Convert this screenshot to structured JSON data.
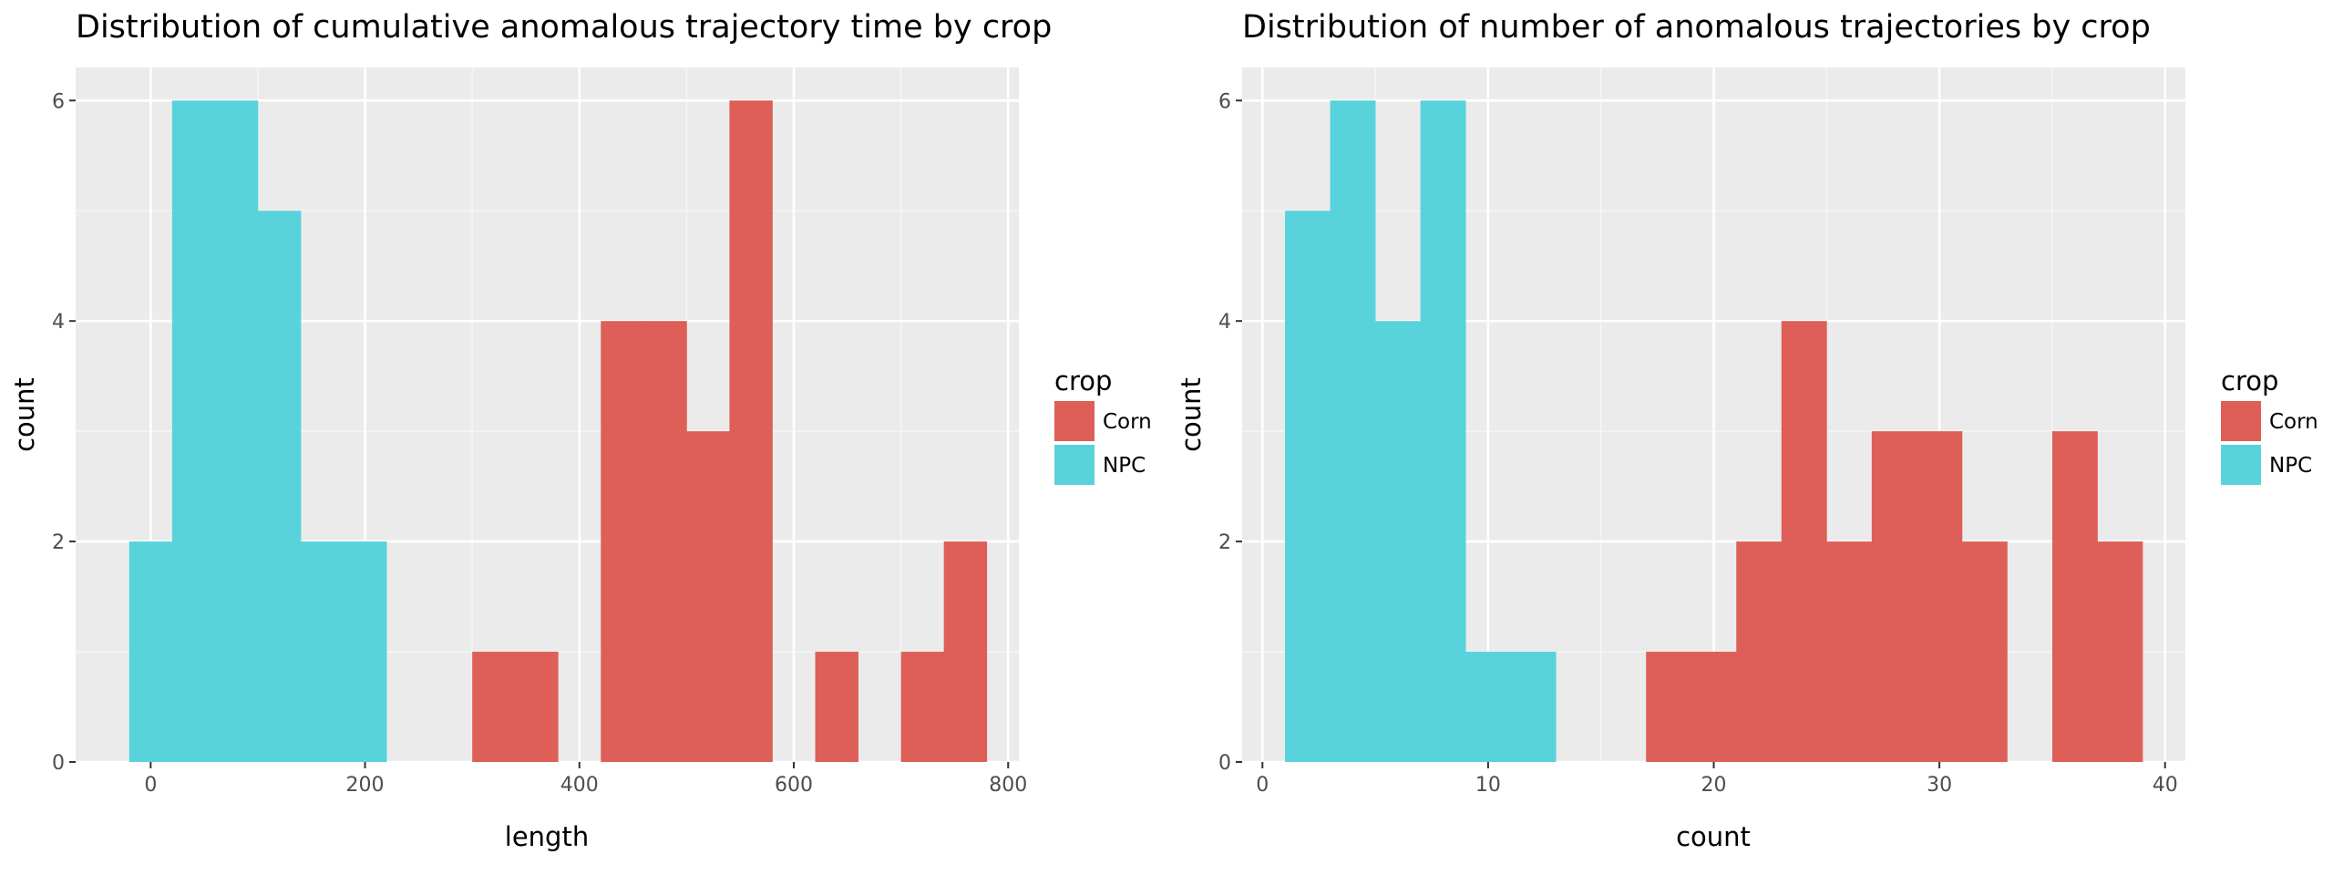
{
  "colors": {
    "Corn": "#dd5f58",
    "NPC": "#58d3db",
    "panel": "#ebebeb",
    "grid_major": "#ffffff",
    "grid_minor": "#f7f7f7",
    "tick": "#333333"
  },
  "chart_data": [
    {
      "type": "bar",
      "title": "Distribution of cumulative anomalous trajectory time by crop",
      "xlabel": "length",
      "ylabel": "count",
      "xlim": [
        -70,
        810
      ],
      "ylim": [
        0,
        6.3
      ],
      "x_ticks": [
        0,
        200,
        400,
        600,
        800
      ],
      "x_tick_labels": [
        "0",
        "200",
        "400",
        "600",
        "800"
      ],
      "y_ticks": [
        0,
        2,
        4,
        6
      ],
      "y_tick_labels": [
        "0",
        "2",
        "4",
        "6"
      ],
      "grid": true,
      "legend": {
        "title": "crop",
        "position": "right",
        "entries": [
          "Corn",
          "NPC"
        ]
      },
      "bin_width": 40,
      "series": [
        {
          "name": "NPC",
          "bins": [
            {
              "x0": -20,
              "x1": 20,
              "count": 2
            },
            {
              "x0": 20,
              "x1": 60,
              "count": 6
            },
            {
              "x0": 60,
              "x1": 100,
              "count": 6
            },
            {
              "x0": 100,
              "x1": 140,
              "count": 5
            },
            {
              "x0": 140,
              "x1": 180,
              "count": 2
            },
            {
              "x0": 180,
              "x1": 220,
              "count": 2
            }
          ]
        },
        {
          "name": "Corn",
          "bins": [
            {
              "x0": 300,
              "x1": 340,
              "count": 1
            },
            {
              "x0": 340,
              "x1": 380,
              "count": 1
            },
            {
              "x0": 420,
              "x1": 460,
              "count": 4
            },
            {
              "x0": 460,
              "x1": 500,
              "count": 4
            },
            {
              "x0": 500,
              "x1": 540,
              "count": 3
            },
            {
              "x0": 540,
              "x1": 580,
              "count": 6
            },
            {
              "x0": 620,
              "x1": 660,
              "count": 1
            },
            {
              "x0": 700,
              "x1": 740,
              "count": 1
            },
            {
              "x0": 740,
              "x1": 780,
              "count": 2
            }
          ]
        }
      ]
    },
    {
      "type": "bar",
      "title": "Distribution of number of anomalous trajectories by crop",
      "xlabel": "count",
      "ylabel": "count",
      "xlim": [
        -0.9,
        40.9
      ],
      "ylim": [
        0,
        6.3
      ],
      "x_ticks": [
        0,
        10,
        20,
        30,
        40
      ],
      "x_tick_labels": [
        "0",
        "10",
        "20",
        "30",
        "40"
      ],
      "y_ticks": [
        0,
        2,
        4,
        6
      ],
      "y_tick_labels": [
        "0",
        "2",
        "4",
        "6"
      ],
      "grid": true,
      "legend": {
        "title": "crop",
        "position": "right",
        "entries": [
          "Corn",
          "NPC"
        ]
      },
      "bin_width": 2,
      "series": [
        {
          "name": "NPC",
          "bins": [
            {
              "x0": 1,
              "x1": 3,
              "count": 5
            },
            {
              "x0": 3,
              "x1": 5,
              "count": 6
            },
            {
              "x0": 5,
              "x1": 7,
              "count": 4
            },
            {
              "x0": 7,
              "x1": 9,
              "count": 6
            },
            {
              "x0": 9,
              "x1": 11,
              "count": 1
            },
            {
              "x0": 11,
              "x1": 13,
              "count": 1
            }
          ]
        },
        {
          "name": "Corn",
          "bins": [
            {
              "x0": 17,
              "x1": 19,
              "count": 1
            },
            {
              "x0": 19,
              "x1": 21,
              "count": 1
            },
            {
              "x0": 21,
              "x1": 23,
              "count": 2
            },
            {
              "x0": 23,
              "x1": 25,
              "count": 4
            },
            {
              "x0": 25,
              "x1": 27,
              "count": 2
            },
            {
              "x0": 27,
              "x1": 29,
              "count": 3
            },
            {
              "x0": 29,
              "x1": 31,
              "count": 3
            },
            {
              "x0": 31,
              "x1": 33,
              "count": 2
            },
            {
              "x0": 35,
              "x1": 37,
              "count": 3
            },
            {
              "x0": 37,
              "x1": 39,
              "count": 2
            }
          ]
        }
      ]
    }
  ]
}
